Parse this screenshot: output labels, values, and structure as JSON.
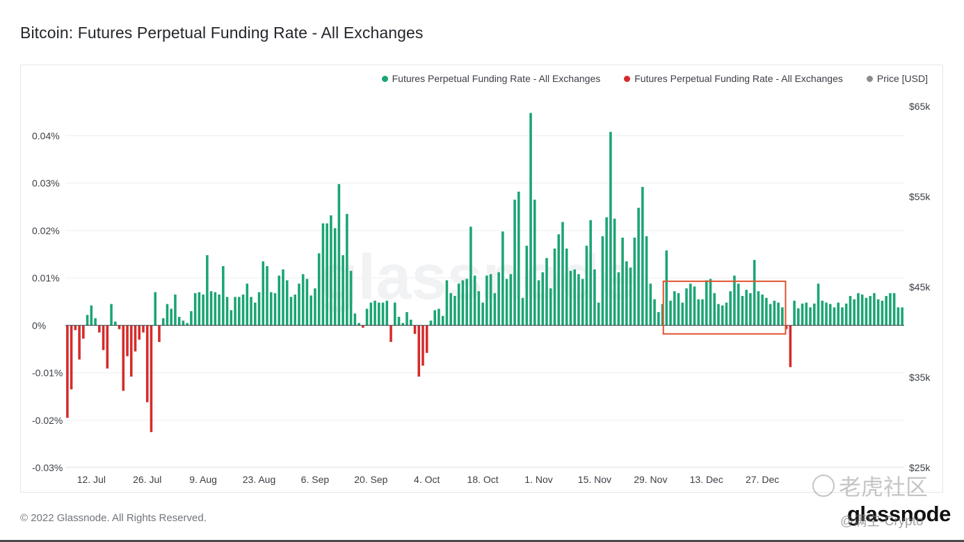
{
  "title": "Bitcoin: Futures Perpetual Funding Rate - All Exchanges",
  "legend": [
    {
      "label": "Futures Perpetual Funding Rate - All Exchanges",
      "color": "#1aa573"
    },
    {
      "label": "Futures Perpetual Funding Rate - All Exchanges",
      "color": "#d62a2a"
    },
    {
      "label": "Price [USD]",
      "color": "#8c8c8c"
    }
  ],
  "footer": {
    "copyright": "© 2022 Glassnode. All Rights Reserved.",
    "logo": "glassnode",
    "watermark_text": "老虎社区",
    "watermark_handle": "@满空-Crypto"
  },
  "chart_data": {
    "type": "bar",
    "colors": {
      "positive": "#1aa573",
      "negative": "#d62a2a",
      "price": "#8c8c8c",
      "highlight": "#e0502d"
    },
    "y_left": {
      "ticks": [
        -0.03,
        -0.02,
        -0.01,
        0,
        0.01,
        0.02,
        0.03,
        0.04
      ],
      "tick_labels": [
        "-0.03%",
        "-0.02%",
        "-0.01%",
        "0%",
        "0.01%",
        "0.02%",
        "0.03%",
        "0.04%"
      ],
      "range": [
        -0.03,
        0.05
      ]
    },
    "y_right": {
      "ticks": [
        25000,
        35000,
        45000,
        55000,
        65000
      ],
      "tick_labels": [
        "$25k",
        "$35k",
        "$45k",
        "$55k",
        "$65k"
      ],
      "range": [
        25000,
        67000
      ]
    },
    "x_ticks": [
      {
        "index": 6,
        "label": "12. Jul"
      },
      {
        "index": 20,
        "label": "26. Jul"
      },
      {
        "index": 34,
        "label": "9. Aug"
      },
      {
        "index": 48,
        "label": "23. Aug"
      },
      {
        "index": 62,
        "label": "6. Sep"
      },
      {
        "index": 76,
        "label": "20. Sep"
      },
      {
        "index": 90,
        "label": "4. Oct"
      },
      {
        "index": 104,
        "label": "18. Oct"
      },
      {
        "index": 118,
        "label": "1. Nov"
      },
      {
        "index": 132,
        "label": "15. Nov"
      },
      {
        "index": 146,
        "label": "29. Nov"
      },
      {
        "index": 160,
        "label": "13. Dec"
      },
      {
        "index": 174,
        "label": "27. Dec"
      }
    ],
    "highlight_range": [
      150,
      179
    ],
    "funding_rate": [
      -0.0195,
      -0.0135,
      -0.001,
      -0.0072,
      -0.0028,
      0.0022,
      0.0042,
      0.0015,
      -0.0015,
      -0.0052,
      -0.0091,
      0.0045,
      0.0008,
      -0.0008,
      -0.0138,
      -0.0065,
      -0.0108,
      -0.0055,
      -0.003,
      -0.0015,
      -0.0162,
      -0.0225,
      0.007,
      -0.0035,
      0.0015,
      0.0045,
      0.0035,
      0.0065,
      0.0018,
      0.001,
      0.0005,
      0.003,
      0.0068,
      0.007,
      0.0065,
      0.0148,
      0.0072,
      0.007,
      0.0065,
      0.0125,
      0.006,
      0.0032,
      0.006,
      0.006,
      0.0065,
      0.0088,
      0.006,
      0.0048,
      0.007,
      0.0135,
      0.0125,
      0.007,
      0.0068,
      0.0105,
      0.0118,
      0.0095,
      0.006,
      0.0065,
      0.0088,
      0.0108,
      0.0098,
      0.0063,
      0.0078,
      0.0152,
      0.0215,
      0.0215,
      0.0232,
      0.0205,
      0.0298,
      0.0148,
      0.0235,
      0.0115,
      0.0025,
      0.0005,
      -0.0005,
      0.0035,
      0.0048,
      0.0052,
      0.0048,
      0.0048,
      0.0052,
      -0.0035,
      0.0048,
      0.0018,
      0.0005,
      0.0028,
      0.0012,
      -0.0018,
      -0.0108,
      -0.0085,
      -0.0058,
      0.001,
      0.0032,
      0.0035,
      0.002,
      0.0095,
      0.0068,
      0.0062,
      0.0088,
      0.0095,
      0.0098,
      0.0208,
      0.0105,
      0.0072,
      0.0048,
      0.0105,
      0.0108,
      0.0068,
      0.0112,
      0.0198,
      0.0098,
      0.0108,
      0.0265,
      0.0282,
      0.0058,
      0.0168,
      0.0448,
      0.0265,
      0.0095,
      0.0112,
      0.0142,
      0.0078,
      0.0162,
      0.0192,
      0.0218,
      0.0162,
      0.0115,
      0.0118,
      0.0108,
      0.0098,
      0.0168,
      0.0222,
      0.0118,
      0.0048,
      0.0188,
      0.0228,
      0.0408,
      0.0225,
      0.0112,
      0.0185,
      0.0135,
      0.0122,
      0.0185,
      0.0248,
      0.0292,
      0.0188,
      0.0088,
      0.0055,
      0.0028,
      0.0045,
      0.0158,
      0.0052,
      0.0072,
      0.0068,
      0.0048,
      0.0078,
      0.0088,
      0.0082,
      0.0055,
      0.0055,
      0.0095,
      0.0098,
      0.0068,
      0.0045,
      0.0042,
      0.0048,
      0.0072,
      0.0105,
      0.0088,
      0.0062,
      0.0075,
      0.0068,
      0.0138,
      0.0072,
      0.0065,
      0.0058,
      0.0045,
      0.0052,
      0.0048,
      0.0038,
      -0.0008,
      -0.0088,
      0.0052,
      0.0036,
      0.0046,
      0.0048,
      0.0038,
      0.0046,
      0.0088,
      0.0052,
      0.0048,
      0.0045,
      0.0038,
      0.0048,
      0.0038,
      0.0046,
      0.0062,
      0.0055,
      0.0068,
      0.0065,
      0.0058,
      0.0062,
      0.0068,
      0.0055,
      0.0052,
      0.0062,
      0.0068,
      0.0068,
      0.0038,
      0.0038
    ]
  }
}
